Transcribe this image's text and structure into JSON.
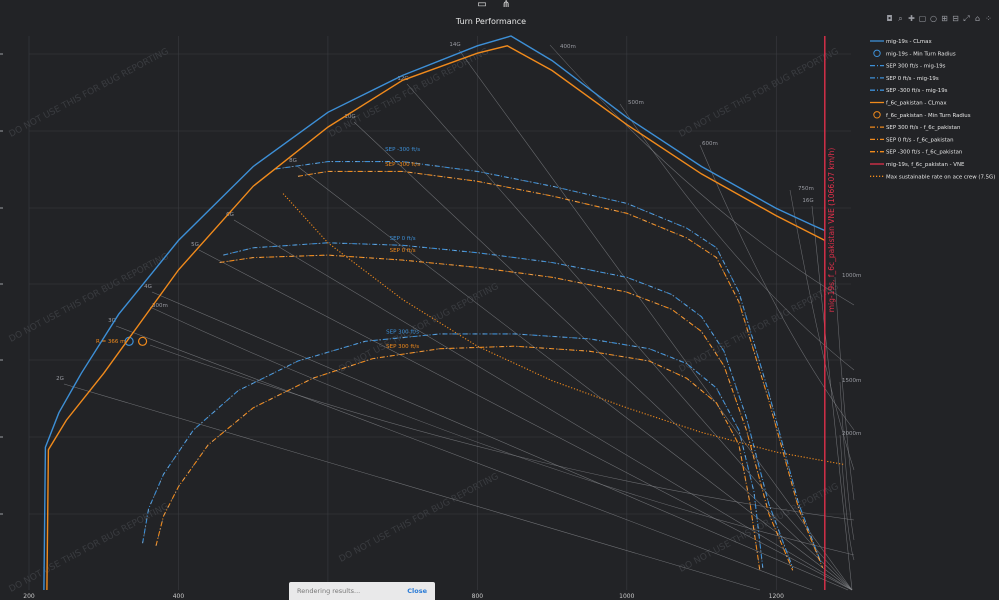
{
  "toolbar": {
    "icons": [
      "camera-icon",
      "zoom-icon",
      "pan-icon",
      "box-select-icon",
      "lasso-icon",
      "zoom-in-icon",
      "zoom-out-icon",
      "autoscale-icon",
      "home-icon",
      "plotly-logo-icon"
    ]
  },
  "top_icons": [
    "screen-icon",
    "share-icon"
  ],
  "status": {
    "message": "Rendering results...",
    "close_label": "Close"
  },
  "colors": {
    "background": "#222326",
    "mig": "#3d8fd6",
    "pakistan": "#f08a1c",
    "vne": "#e0304a",
    "grid": "#3a3c41",
    "iso": "#8a8c90"
  },
  "chart_data": {
    "type": "line",
    "title": "Turn Performance",
    "xlabel": "",
    "ylabel": "",
    "xlim": [
      200,
      1300
    ],
    "ylim": [
      1.5,
      24.0
    ],
    "x_ticks": [
      200,
      400,
      600,
      800,
      1000,
      1200
    ],
    "watermark": "DO NOT USE THIS FOR BUG REPORTING",
    "legend_position": "right",
    "annotation": "R = 366 m",
    "legend": [
      "mig-19s - CLmax",
      "mig-19s - Min Turn Radius",
      "SEP 300 ft/s - mig-19s",
      "SEP 0 ft/s - mig-19s",
      "SEP -300 ft/s - mig-19s",
      "f_6c_pakistan - CLmax",
      "f_6c_pakistan - Min Turn Radius",
      "SEP 300 ft/s - f_6c_pakistan",
      "SEP 0 ft/s - f_6c_pakistan",
      "SEP -300 ft/s - f_6c_pakistan",
      "mig-19s, f_6c_pakistan - VNE",
      "Max sustainable rate on ace crew (7.5G)"
    ],
    "series": [
      {
        "name": "mig-19s - CLmax",
        "color": "#3d8fd6",
        "dash": "solid",
        "x": [
          220,
          222,
          240,
          270,
          320,
          400,
          500,
          600,
          700,
          800,
          845,
          900,
          1000,
          1100,
          1200,
          1250,
          1265
        ],
        "y": [
          1.5,
          7.3,
          8.7,
          10.3,
          12.7,
          15.7,
          18.7,
          20.9,
          22.4,
          23.6,
          24.0,
          23.0,
          20.7,
          18.7,
          17.0,
          16.3,
          16.1
        ]
      },
      {
        "name": "mig-19s - Min Turn Radius",
        "color": "#3d8fd6",
        "marker": "circle",
        "x": [
          334
        ],
        "y": [
          11.6
        ]
      },
      {
        "name": "SEP -300 ft/s - mig-19s",
        "color": "#3d8fd6",
        "dash": "dashdot",
        "x": [
          530,
          600,
          700,
          800,
          900,
          1000,
          1080,
          1120,
          1150,
          1190,
          1230,
          1260
        ],
        "y": [
          18.6,
          18.9,
          18.9,
          18.5,
          17.9,
          17.2,
          16.2,
          15.4,
          13.6,
          9.5,
          5.0,
          2.6
        ]
      },
      {
        "name": "SEP 0 ft/s - mig-19s",
        "color": "#3d8fd6",
        "dash": "dashdot",
        "x": [
          460,
          500,
          600,
          700,
          800,
          900,
          1000,
          1060,
          1100,
          1130,
          1160,
          1190,
          1222
        ],
        "y": [
          15.1,
          15.4,
          15.6,
          15.5,
          15.2,
          14.8,
          14.2,
          13.5,
          12.6,
          11.2,
          8.5,
          5.0,
          2.4
        ]
      },
      {
        "name": "SEP 300 ft/s - mig-19s",
        "color": "#3d8fd6",
        "dash": "dashdot",
        "x": [
          352,
          360,
          380,
          420,
          480,
          560,
          650,
          750,
          850,
          950,
          1030,
          1080,
          1120,
          1150,
          1170,
          1182
        ],
        "y": [
          3.4,
          4.8,
          6.2,
          8.0,
          9.6,
          10.8,
          11.6,
          11.9,
          11.9,
          11.7,
          11.3,
          10.7,
          9.7,
          8.0,
          5.5,
          2.4
        ]
      },
      {
        "name": "f_6c_pakistan - CLmax",
        "color": "#f08a1c",
        "dash": "solid",
        "x": [
          224,
          226,
          250,
          300,
          400,
          500,
          600,
          700,
          800,
          840,
          900,
          1000,
          1100,
          1200,
          1265
        ],
        "y": [
          1.5,
          7.2,
          8.4,
          10.3,
          14.5,
          17.9,
          20.3,
          22.2,
          23.3,
          23.6,
          22.6,
          20.4,
          18.4,
          16.7,
          15.7
        ]
      },
      {
        "name": "f_6c_pakistan - Min Turn Radius",
        "color": "#f08a1c",
        "marker": "circle",
        "x": [
          352
        ],
        "y": [
          11.6
        ]
      },
      {
        "name": "SEP -300 ft/s - f_6c_pakistan",
        "color": "#f08a1c",
        "dash": "dashdot",
        "x": [
          560,
          600,
          700,
          800,
          900,
          1000,
          1080,
          1120,
          1150,
          1190,
          1230,
          1262
        ],
        "y": [
          18.3,
          18.5,
          18.5,
          18.1,
          17.5,
          16.8,
          15.8,
          15.0,
          13.2,
          9.2,
          4.8,
          2.4
        ]
      },
      {
        "name": "SEP 0 ft/s - f_6c_pakistan",
        "color": "#f08a1c",
        "dash": "dashdot",
        "x": [
          455,
          500,
          600,
          700,
          800,
          900,
          1000,
          1060,
          1100,
          1130,
          1160,
          1190,
          1222
        ],
        "y": [
          14.8,
          15.0,
          15.1,
          14.9,
          14.6,
          14.2,
          13.6,
          12.9,
          12.0,
          10.6,
          8.0,
          4.6,
          2.3
        ]
      },
      {
        "name": "SEP 300 ft/s - f_6c_pakistan",
        "color": "#f08a1c",
        "dash": "dashdot",
        "x": [
          370,
          380,
          400,
          440,
          500,
          580,
          660,
          750,
          850,
          950,
          1030,
          1080,
          1120,
          1150,
          1165,
          1178
        ],
        "y": [
          3.3,
          4.5,
          5.7,
          7.4,
          8.9,
          10.1,
          10.9,
          11.3,
          11.4,
          11.2,
          10.8,
          10.1,
          9.1,
          7.4,
          5.0,
          2.3
        ]
      },
      {
        "name": "Max sustainable rate on ace crew (7.5G)",
        "color": "#f08a1c",
        "dash": "dot",
        "x": [
          540,
          600,
          700,
          800,
          900,
          1000,
          1100,
          1200,
          1290
        ],
        "y": [
          17.6,
          15.6,
          13.3,
          11.4,
          10.0,
          8.9,
          7.9,
          7.1,
          6.6
        ]
      },
      {
        "name": "mig-19s, f_6c_pakistan - VNE",
        "color": "#e0304a",
        "dash": "solid",
        "x": [
          1265,
          1265
        ],
        "y": [
          1.5,
          24.0
        ]
      }
    ],
    "vne_label": "mig-19s, f_6c_pakistan VNE (1066.07 km/h)",
    "g_lines": {
      "labels": [
        "2G",
        "3G",
        "4G",
        "5G",
        "6G",
        "8G",
        "10G",
        "12G",
        "14G",
        "16G"
      ]
    },
    "radius_lines": {
      "labels": [
        "300m",
        "400m",
        "500m",
        "600m",
        "750m",
        "1000m",
        "1500m",
        "2000m"
      ]
    },
    "sep_labels": [
      {
        "text": "SEP -300 ft/s",
        "color": "#3d8fd6",
        "x": 700,
        "y": 19.2
      },
      {
        "text": "SEP -300 ft/s",
        "color": "#f08a1c",
        "x": 700,
        "y": 18.6
      },
      {
        "text": "SEP 0 ft/s",
        "color": "#3d8fd6",
        "x": 700,
        "y": 15.6
      },
      {
        "text": "SEP 0 ft/s",
        "color": "#f08a1c",
        "x": 700,
        "y": 15.1
      },
      {
        "text": "SEP 300 ft/s",
        "color": "#3d8fd6",
        "x": 700,
        "y": 11.8
      },
      {
        "text": "SEP 300 ft/s",
        "color": "#f08a1c",
        "x": 700,
        "y": 11.2
      }
    ]
  }
}
